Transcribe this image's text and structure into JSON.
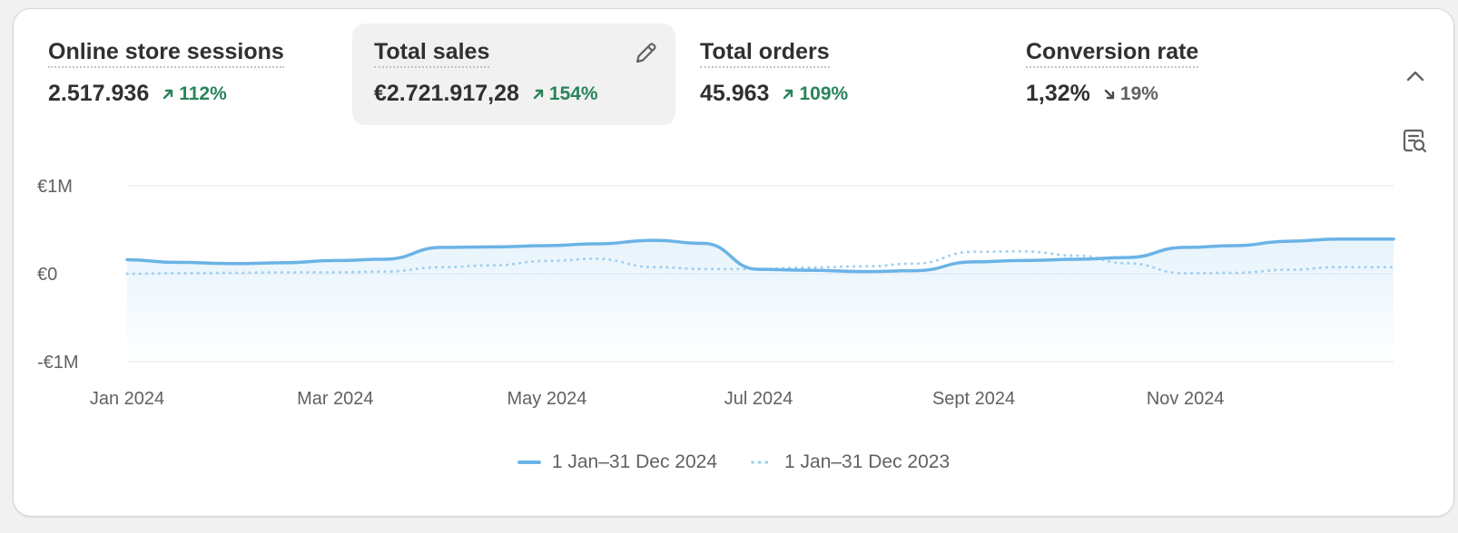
{
  "metrics": [
    {
      "title": "Online store sessions",
      "value": "2.517.936",
      "change": "112%",
      "direction": "up"
    },
    {
      "title": "Total sales",
      "value": "€2.721.917,28",
      "change": "154%",
      "direction": "up"
    },
    {
      "title": "Total orders",
      "value": "45.963",
      "change": "109%",
      "direction": "up"
    },
    {
      "title": "Conversion rate",
      "value": "1,32%",
      "change": "19%",
      "direction": "down"
    }
  ],
  "icons": {
    "edit": "pencil-icon",
    "collapse": "chevron-up-icon",
    "report": "report-search-icon"
  },
  "colors": {
    "current_series": "#6ab3e6",
    "previous_series": "#9fd0f0",
    "positive": "#29845a",
    "neutral": "#616161"
  },
  "chart_data": {
    "type": "area",
    "title": "",
    "xlabel": "",
    "ylabel": "",
    "x_tick_labels": [
      "Jan 2024",
      "Mar 2024",
      "May 2024",
      "Jul 2024",
      "Sept 2024",
      "Nov 2024"
    ],
    "y_tick_labels": [
      "€1M",
      "€0",
      "-€1M"
    ],
    "y_ticks": [
      1000000,
      0,
      -1000000
    ],
    "ylim": [
      -1000000,
      1000000
    ],
    "grid": true,
    "legend_position": "bottom",
    "x": [
      "2024-01-01",
      "2024-01-15",
      "2024-02-01",
      "2024-02-15",
      "2024-03-01",
      "2024-03-15",
      "2024-04-01",
      "2024-04-15",
      "2024-05-01",
      "2024-05-15",
      "2024-06-01",
      "2024-06-15",
      "2024-07-01",
      "2024-07-15",
      "2024-08-01",
      "2024-08-15",
      "2024-09-01",
      "2024-09-15",
      "2024-10-01",
      "2024-10-15",
      "2024-11-01",
      "2024-11-15",
      "2024-12-01",
      "2024-12-15"
    ],
    "series": [
      {
        "name": "1 Jan–31 Dec 2024",
        "style": "solid",
        "values": [
          160000,
          130000,
          115000,
          125000,
          150000,
          165000,
          300000,
          305000,
          320000,
          340000,
          380000,
          345000,
          50000,
          40000,
          25000,
          35000,
          135000,
          150000,
          165000,
          185000,
          300000,
          320000,
          370000,
          395000
        ]
      },
      {
        "name": "1 Jan–31 Dec 2023",
        "style": "dotted",
        "values": [
          0,
          5000,
          10000,
          15000,
          15000,
          25000,
          75000,
          95000,
          145000,
          170000,
          75000,
          55000,
          55000,
          70000,
          85000,
          115000,
          250000,
          255000,
          205000,
          120000,
          5000,
          10000,
          45000,
          75000
        ]
      }
    ]
  }
}
